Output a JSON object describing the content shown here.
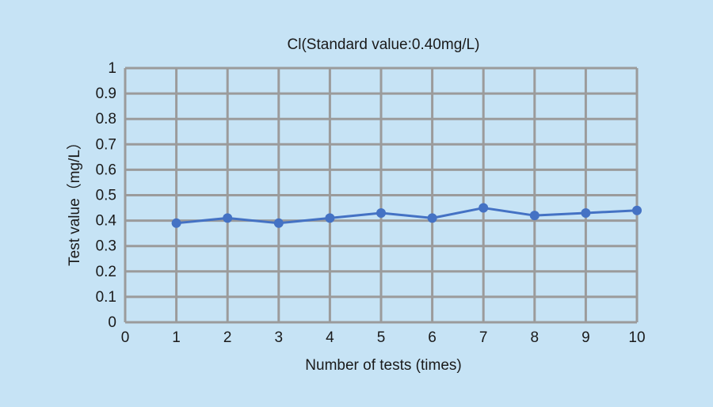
{
  "colors": {
    "background": "#c6e3f5",
    "grid": "#9b9b9b",
    "series": "#4472c4"
  },
  "chart_data": {
    "type": "line",
    "title": "Cl(Standard value:0.40mg/L)",
    "xlabel": "Number of tests (times)",
    "ylabel": "Test value（mg/L）",
    "xlim": [
      0,
      10
    ],
    "ylim": [
      0,
      1
    ],
    "grid": true,
    "x_ticks": [
      "0",
      "1",
      "2",
      "3",
      "4",
      "5",
      "6",
      "7",
      "8",
      "9",
      "10"
    ],
    "y_ticks": [
      "0",
      "0.1",
      "0.2",
      "0.3",
      "0.4",
      "0.5",
      "0.6",
      "0.7",
      "0.8",
      "0.9",
      "1"
    ],
    "x": [
      1,
      2,
      3,
      4,
      5,
      6,
      7,
      8,
      9,
      10
    ],
    "y": [
      0.39,
      0.41,
      0.39,
      0.41,
      0.43,
      0.41,
      0.45,
      0.42,
      0.43,
      0.44
    ]
  }
}
